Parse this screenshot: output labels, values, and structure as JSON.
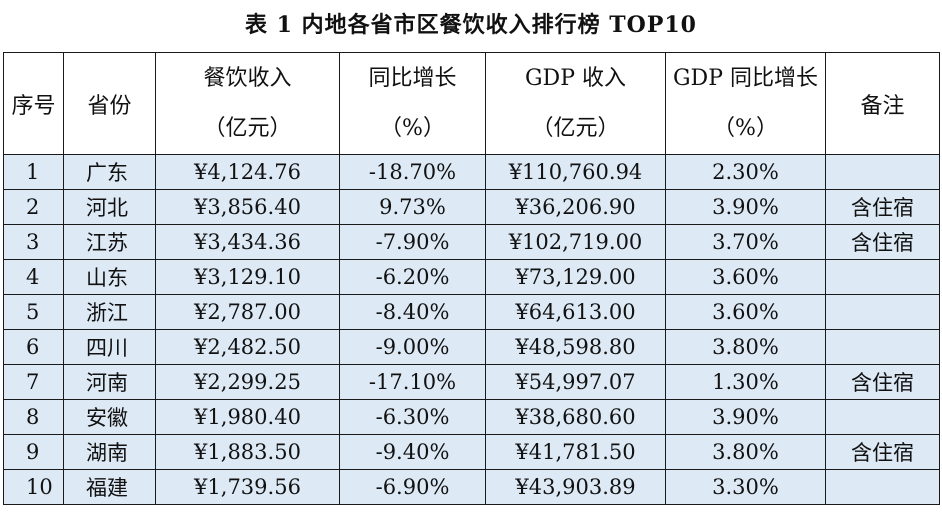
{
  "title": "表 1   内地各省市区餐饮收入排行榜 TOP10",
  "headers": {
    "seq": "序号",
    "province": "省份",
    "revenue_line1": "餐饮收入",
    "revenue_line2": "（亿元）",
    "growth_line1": "同比增长",
    "growth_line2": "（%）",
    "gdp_line1": "GDP 收入",
    "gdp_line2": "（亿元）",
    "gdp_growth_line1": "GDP 同比增长",
    "gdp_growth_line2": "（%）",
    "note": "备注"
  },
  "rows": [
    {
      "seq": "1",
      "province": "广东",
      "revenue": "¥4,124.76",
      "growth": "-18.70%",
      "gdp": "¥110,760.94",
      "gdp_growth": "2.30%",
      "note": ""
    },
    {
      "seq": "2",
      "province": "河北",
      "revenue": "¥3,856.40",
      "growth": "9.73%",
      "gdp": "¥36,206.90",
      "gdp_growth": "3.90%",
      "note": "含住宿"
    },
    {
      "seq": "3",
      "province": "江苏",
      "revenue": "¥3,434.36",
      "growth": "-7.90%",
      "gdp": "¥102,719.00",
      "gdp_growth": "3.70%",
      "note": "含住宿"
    },
    {
      "seq": "4",
      "province": "山东",
      "revenue": "¥3,129.10",
      "growth": "-6.20%",
      "gdp": "¥73,129.00",
      "gdp_growth": "3.60%",
      "note": ""
    },
    {
      "seq": "5",
      "province": "浙江",
      "revenue": "¥2,787.00",
      "growth": "-8.40%",
      "gdp": "¥64,613.00",
      "gdp_growth": "3.60%",
      "note": ""
    },
    {
      "seq": "6",
      "province": "四川",
      "revenue": "¥2,482.50",
      "growth": "-9.00%",
      "gdp": "¥48,598.80",
      "gdp_growth": "3.80%",
      "note": ""
    },
    {
      "seq": "7",
      "province": "河南",
      "revenue": "¥2,299.25",
      "growth": "-17.10%",
      "gdp": "¥54,997.07",
      "gdp_growth": "1.30%",
      "note": "含住宿"
    },
    {
      "seq": "8",
      "province": "安徽",
      "revenue": "¥1,980.40",
      "growth": "-6.30%",
      "gdp": "¥38,680.60",
      "gdp_growth": "3.90%",
      "note": ""
    },
    {
      "seq": "9",
      "province": "湖南",
      "revenue": "¥1,883.50",
      "growth": "-9.40%",
      "gdp": "¥41,781.50",
      "gdp_growth": "3.80%",
      "note": "含住宿"
    },
    {
      "seq": "10",
      "province": "福建",
      "revenue": "¥1,739.56",
      "growth": "-6.90%",
      "gdp": "¥43,903.89",
      "gdp_growth": "3.30%",
      "note": ""
    }
  ]
}
